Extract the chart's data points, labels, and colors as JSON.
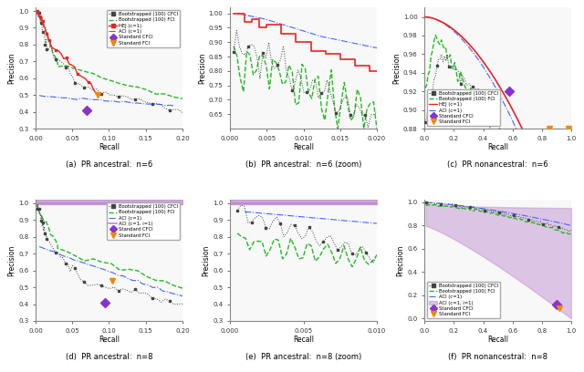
{
  "fig_width": 6.4,
  "fig_height": 4.08,
  "dpi": 100,
  "background": "#ffffff",
  "colors": {
    "cfci_boot": "#444444",
    "fci_boot": "#22bb22",
    "hej": "#ee2222",
    "aci": "#4466ff",
    "aci_i1": "#bb88cc",
    "standard_cfci": "#8833cc",
    "standard_fci": "#ee8800"
  },
  "subplot_titles": [
    "(a)  PR ancestral:  n=6",
    "(b)  PR ancestral:  n=6 (zoom)",
    "(c)  PR nonancestral:  n=6",
    "(d)  PR ancestral:  n=8",
    "(e)  PR ancestral:  n=8 (zoom)",
    "(f)  PR nonancestral:  n=8"
  ]
}
